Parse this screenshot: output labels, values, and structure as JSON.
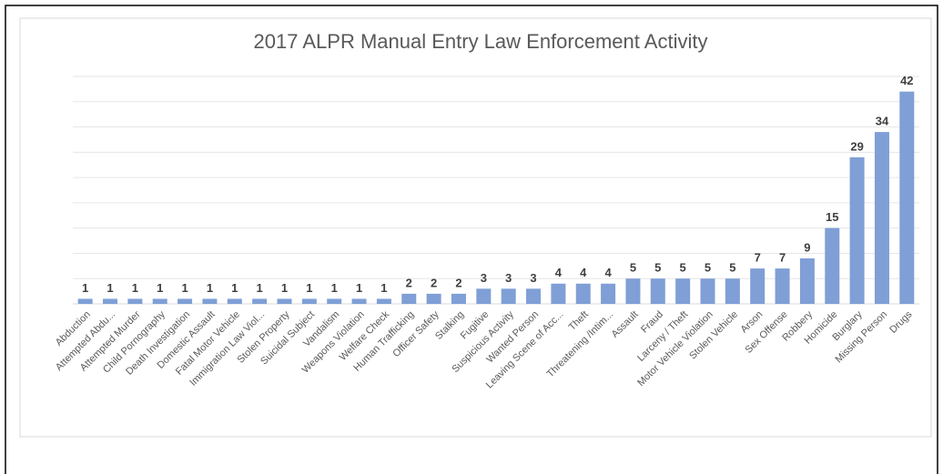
{
  "chart_data": {
    "type": "bar",
    "title": "2017 ALPR Manual Entry Law Enforcement Activity",
    "categories": [
      "Abduction",
      "Attempted Abdu...",
      "Attempted Murder",
      "Child Pornography",
      "Death Investigation",
      "Domestic Assault",
      "Fatal Motor Vehicle",
      "Immigration Law Viol...",
      "Stolen Property",
      "Suicidal Subject",
      "Vandalism",
      "Weapons Violation",
      "Welfare Check",
      "Human Trafficking",
      "Officer Safety",
      "Stalking",
      "Fugitive",
      "Suspicious Activity",
      "Wanted Person",
      "Leaving Scene of Acc...",
      "Theft",
      "Threatening /Intim...",
      "Assault",
      "Fraud",
      "Larceny / Theft",
      "Motor Vehicle Violation",
      "Stolen Vehicle",
      "Arson",
      "Sex Offense",
      "Robbery",
      "Homicide",
      "Burglary",
      "Missing Person",
      "Drugs"
    ],
    "values": [
      1,
      1,
      1,
      1,
      1,
      1,
      1,
      1,
      1,
      1,
      1,
      1,
      1,
      2,
      2,
      2,
      3,
      3,
      3,
      4,
      4,
      4,
      5,
      5,
      5,
      5,
      5,
      7,
      7,
      9,
      15,
      29,
      34,
      42
    ],
    "color": "#7f9fd6",
    "ylim": [
      0,
      45
    ],
    "yticks": [
      0,
      5,
      10,
      15,
      20,
      25,
      30,
      35,
      40,
      45
    ],
    "grid": true
  }
}
